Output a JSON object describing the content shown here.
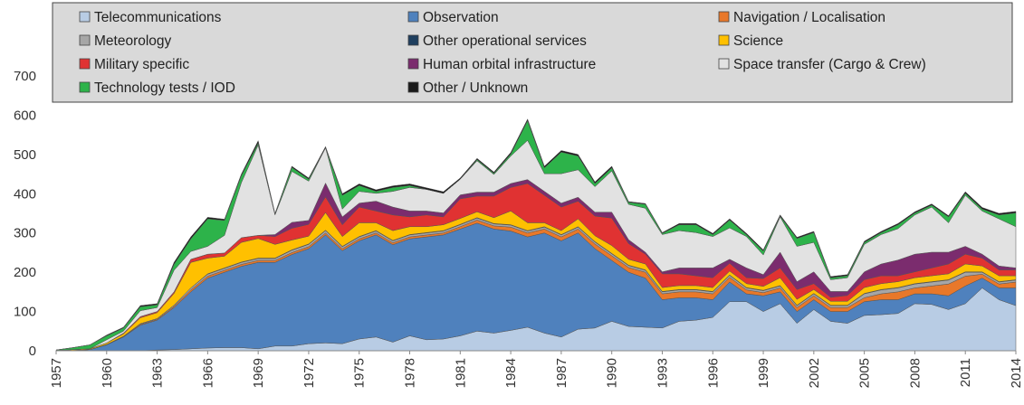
{
  "chart_data": {
    "type": "stacked_area",
    "x": [
      1957,
      1958,
      1959,
      1960,
      1961,
      1962,
      1963,
      1964,
      1965,
      1966,
      1967,
      1968,
      1969,
      1970,
      1971,
      1972,
      1973,
      1974,
      1975,
      1976,
      1977,
      1978,
      1979,
      1980,
      1981,
      1982,
      1983,
      1984,
      1985,
      1986,
      1987,
      1988,
      1989,
      1990,
      1991,
      1992,
      1993,
      1994,
      1995,
      1996,
      1997,
      1998,
      1999,
      2000,
      2001,
      2002,
      2003,
      2004,
      2005,
      2006,
      2007,
      2008,
      2009,
      2010,
      2011,
      2012,
      2013,
      2014
    ],
    "xlim": [
      1957,
      2014
    ],
    "xticks": [
      1957,
      1960,
      1963,
      1966,
      1969,
      1972,
      1975,
      1978,
      1981,
      1984,
      1987,
      1990,
      1993,
      1996,
      1999,
      2002,
      2005,
      2008,
      2011,
      2014
    ],
    "ylim": [
      0,
      700
    ],
    "yticks": [
      0,
      100,
      200,
      300,
      400,
      500,
      600,
      700
    ],
    "grid": false,
    "legend": "top",
    "series": [
      {
        "name": "Telecommunications",
        "color": "#b8cce4",
        "values": [
          0,
          0,
          0,
          0,
          0,
          0,
          2,
          3,
          5,
          7,
          8,
          8,
          5,
          12,
          12,
          18,
          20,
          18,
          30,
          35,
          22,
          38,
          28,
          30,
          38,
          50,
          45,
          52,
          60,
          45,
          35,
          55,
          58,
          75,
          62,
          60,
          58,
          75,
          78,
          85,
          125,
          125,
          100,
          120,
          70,
          105,
          75,
          70,
          90,
          92,
          95,
          120,
          118,
          105,
          120,
          160,
          130,
          115
        ]
      },
      {
        "name": "Observation",
        "color": "#4f81bd",
        "values": [
          0,
          1,
          3,
          15,
          35,
          65,
          76,
          107,
          145,
          178,
          192,
          207,
          220,
          213,
          233,
          242,
          275,
          237,
          250,
          260,
          248,
          247,
          262,
          265,
          272,
          275,
          265,
          253,
          230,
          255,
          245,
          245,
          202,
          155,
          138,
          125,
          72,
          60,
          57,
          45,
          50,
          20,
          40,
          30,
          30,
          25,
          25,
          30,
          35,
          38,
          35,
          25,
          27,
          35,
          45,
          25,
          30,
          45
        ]
      },
      {
        "name": "Navigation / Localisation",
        "color": "#e8782a",
        "values": [
          0,
          0,
          0,
          0,
          1,
          2,
          2,
          3,
          5,
          5,
          5,
          5,
          5,
          5,
          5,
          5,
          5,
          5,
          5,
          5,
          5,
          5,
          5,
          5,
          6,
          8,
          8,
          10,
          10,
          10,
          10,
          10,
          12,
          12,
          12,
          15,
          15,
          15,
          15,
          15,
          12,
          10,
          8,
          10,
          10,
          10,
          10,
          10,
          10,
          15,
          20,
          15,
          20,
          30,
          25,
          10,
          10,
          15
        ]
      },
      {
        "name": "Meteorology",
        "color": "#a6a6a6",
        "values": [
          0,
          0,
          0,
          1,
          1,
          2,
          2,
          3,
          5,
          5,
          5,
          5,
          5,
          5,
          6,
          6,
          6,
          5,
          5,
          5,
          5,
          5,
          5,
          5,
          5,
          5,
          5,
          5,
          5,
          5,
          5,
          5,
          5,
          5,
          5,
          5,
          5,
          5,
          5,
          5,
          5,
          5,
          5,
          5,
          5,
          5,
          5,
          5,
          10,
          10,
          10,
          10,
          10,
          10,
          10,
          5,
          5,
          5
        ]
      },
      {
        "name": "Other operational services",
        "color": "#1f3f5f",
        "values": [
          0,
          0,
          0,
          0,
          0,
          0,
          0,
          0,
          0,
          1,
          1,
          1,
          1,
          1,
          1,
          1,
          1,
          1,
          1,
          1,
          1,
          1,
          1,
          1,
          1,
          1,
          1,
          1,
          1,
          1,
          1,
          1,
          1,
          1,
          1,
          1,
          1,
          1,
          1,
          1,
          1,
          1,
          1,
          1,
          1,
          1,
          1,
          1,
          1,
          1,
          1,
          1,
          1,
          1,
          1,
          1,
          1,
          1
        ]
      },
      {
        "name": "Science",
        "color": "#ffc000",
        "values": [
          1,
          2,
          2,
          4,
          6,
          15,
          15,
          30,
          65,
          40,
          30,
          50,
          50,
          35,
          25,
          20,
          45,
          25,
          35,
          20,
          25,
          20,
          15,
          15,
          15,
          15,
          15,
          35,
          20,
          10,
          10,
          20,
          15,
          20,
          15,
          15,
          10,
          10,
          10,
          10,
          10,
          10,
          10,
          20,
          15,
          10,
          10,
          10,
          15,
          15,
          15,
          15,
          15,
          15,
          20,
          15,
          15,
          10
        ]
      },
      {
        "name": "Military specific",
        "color": "#e03232",
        "values": [
          0,
          0,
          0,
          0,
          2,
          3,
          3,
          4,
          8,
          10,
          8,
          12,
          8,
          20,
          30,
          30,
          40,
          30,
          40,
          30,
          40,
          25,
          30,
          20,
          50,
          40,
          55,
          60,
          100,
          70,
          60,
          45,
          50,
          70,
          40,
          25,
          35,
          30,
          25,
          25,
          20,
          15,
          20,
          25,
          25,
          15,
          10,
          15,
          20,
          20,
          15,
          15,
          20,
          25,
          25,
          20,
          15,
          15
        ]
      },
      {
        "name": "Human orbital infrastructure",
        "color": "#7b2c6e",
        "values": [
          0,
          0,
          0,
          0,
          0,
          0,
          0,
          0,
          0,
          0,
          0,
          0,
          0,
          5,
          15,
          10,
          35,
          20,
          10,
          25,
          20,
          15,
          10,
          10,
          10,
          10,
          10,
          10,
          10,
          10,
          10,
          10,
          10,
          15,
          10,
          5,
          5,
          15,
          20,
          25,
          10,
          25,
          10,
          40,
          20,
          30,
          15,
          10,
          20,
          30,
          40,
          45,
          40,
          30,
          20,
          10,
          10,
          5
        ]
      },
      {
        "name": "Space transfer (Cargo & Crew)",
        "color": "#e2e2e2",
        "values": [
          0,
          0,
          0,
          8,
          5,
          15,
          10,
          55,
          20,
          20,
          45,
          140,
          230,
          50,
          130,
          100,
          90,
          20,
          30,
          20,
          40,
          60,
          55,
          50,
          40,
          80,
          45,
          70,
          100,
          45,
          75,
          70,
          65,
          105,
          90,
          112,
          95,
          95,
          90,
          80,
          80,
          80,
          50,
          90,
          90,
          75,
          30,
          35,
          70,
          75,
          80,
          100,
          115,
          75,
          130,
          110,
          120,
          105
        ]
      },
      {
        "name": "Technology tests / IOD",
        "color": "#2db34a",
        "values": [
          1,
          5,
          10,
          10,
          8,
          10,
          7,
          15,
          32,
          70,
          38,
          18,
          5,
          2,
          10,
          5,
          0,
          35,
          15,
          5,
          10,
          5,
          0,
          0,
          0,
          3,
          3,
          5,
          50,
          15,
          55,
          35,
          8,
          8,
          5,
          10,
          3,
          15,
          20,
          5,
          20,
          5,
          10,
          2,
          20,
          25,
          5,
          5,
          5,
          5,
          10,
          5,
          5,
          15,
          5,
          5,
          10,
          35
        ]
      },
      {
        "name": "Other / Unknown",
        "color": "#1a1a1a",
        "values": [
          0,
          0,
          0,
          2,
          2,
          3,
          3,
          5,
          5,
          4,
          3,
          4,
          6,
          2,
          3,
          3,
          3,
          4,
          4,
          4,
          4,
          4,
          4,
          4,
          3,
          3,
          3,
          4,
          4,
          4,
          4,
          4,
          4,
          4,
          2,
          2,
          2,
          3,
          3,
          3,
          3,
          3,
          3,
          3,
          3,
          3,
          3,
          3,
          3,
          3,
          3,
          3,
          3,
          3,
          4,
          4,
          4,
          4
        ]
      }
    ]
  }
}
